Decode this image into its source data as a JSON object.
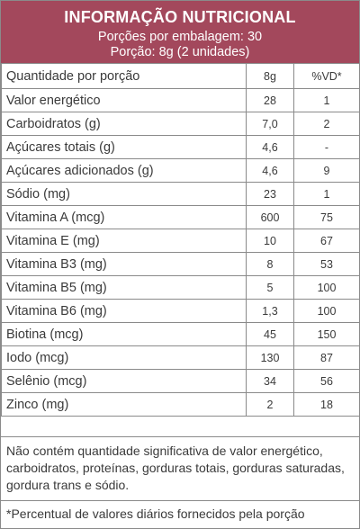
{
  "header": {
    "title": "INFORMAÇÃO NUTRICIONAL",
    "servings": "Porções por embalagem: 30",
    "portion": "Porção: 8g (2 unidades)"
  },
  "table": {
    "headers": [
      "Quantidade por porção",
      "8g",
      "%VD*"
    ],
    "rows": [
      {
        "name": "Valor energético",
        "amount": "28",
        "dv": "1"
      },
      {
        "name": "Carboidratos (g)",
        "amount": "7,0",
        "dv": "2"
      },
      {
        "name": "Açúcares totais (g)",
        "amount": "4,6",
        "dv": "-"
      },
      {
        "name": "Açúcares adicionados (g)",
        "amount": "4,6",
        "dv": "9"
      },
      {
        "name": "Sódio (mg)",
        "amount": "23",
        "dv": "1"
      },
      {
        "name": "Vitamina A (mcg)",
        "amount": "600",
        "dv": "75"
      },
      {
        "name": "Vitamina E (mg)",
        "amount": "10",
        "dv": "67"
      },
      {
        "name": "Vitamina B3 (mg)",
        "amount": "8",
        "dv": "53"
      },
      {
        "name": "Vitamina B5 (mg)",
        "amount": "5",
        "dv": "100"
      },
      {
        "name": "Vitamina B6 (mg)",
        "amount": "1,3",
        "dv": "100"
      },
      {
        "name": "Biotina (mcg)",
        "amount": "45",
        "dv": "150"
      },
      {
        "name": "Iodo (mcg)",
        "amount": "130",
        "dv": "87"
      },
      {
        "name": "Selênio (mcg)",
        "amount": "34",
        "dv": "56"
      },
      {
        "name": "Zinco (mg)",
        "amount": "2",
        "dv": "18"
      }
    ]
  },
  "note": "Não contém quantidade significativa de valor energético, carboidratos, proteínas, gorduras totais, gorduras saturadas, gordura trans e sódio.",
  "footnote": "*Percentual de valores diários fornecidos pela porção",
  "colors": {
    "header_bg": "#a3485c",
    "border": "#8a8a8a",
    "text": "#3a3a3a"
  }
}
